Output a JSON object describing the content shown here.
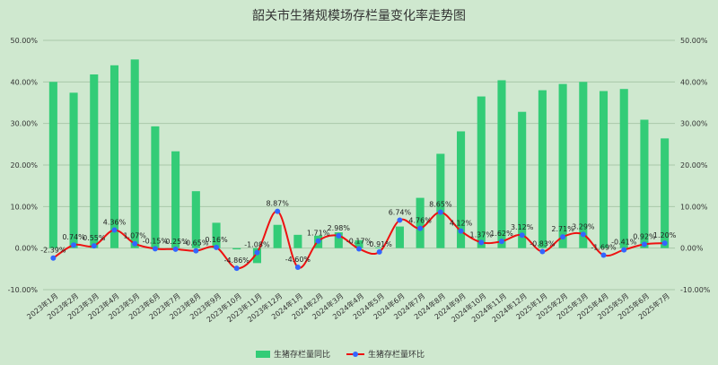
{
  "chart_data": {
    "type": "bar",
    "title": "韶关市生猪规模场存栏量变化率走势图",
    "categories": [
      "2023年1月",
      "2023年2月",
      "2023年3月",
      "2023年4月",
      "2023年5月",
      "2023年6月",
      "2023年7月",
      "2023年8月",
      "2023年9月",
      "2023年10月",
      "2023年11月",
      "2023年12月",
      "2024年1月",
      "2024年2月",
      "2024年3月",
      "2024年4月",
      "2024年5月",
      "2024年6月",
      "2024年7月",
      "2024年8月",
      "2024年9月",
      "2024年10月",
      "2024年11月",
      "2024年12月",
      "2025年1月",
      "2025年2月",
      "2025年3月",
      "2025年4月",
      "2025年5月",
      "2025年6月",
      "2025年7月"
    ],
    "series": [
      {
        "name": "生猪存栏量同比",
        "type": "bar",
        "color": "#33cc77",
        "values": [
          40.0,
          37.4,
          41.8,
          44.0,
          45.4,
          29.3,
          23.3,
          13.7,
          6.1,
          -0.3,
          -3.6,
          5.6,
          3.2,
          3.0,
          3.8,
          1.9,
          0.2,
          5.2,
          12.1,
          22.7,
          28.1,
          36.5,
          40.4,
          32.8,
          38.0,
          39.5,
          40.0,
          37.8,
          38.3,
          30.9,
          26.4
        ]
      },
      {
        "name": "生猪存栏量环比",
        "type": "line",
        "color": "#ee1111",
        "marker_color": "#3366ff",
        "values": [
          -2.39,
          0.74,
          0.55,
          4.36,
          1.07,
          -0.15,
          -0.25,
          -0.65,
          0.16,
          -4.86,
          -1.08,
          8.87,
          -4.6,
          1.71,
          2.98,
          -0.17,
          -0.91,
          6.74,
          4.76,
          8.65,
          4.12,
          1.37,
          1.62,
          3.12,
          -0.83,
          2.71,
          3.29,
          -1.69,
          -0.41,
          0.92,
          1.2
        ],
        "labels": [
          "-2.39%",
          "0.74%",
          "0.55%",
          "4.36%",
          "1.07%",
          "-0.15%",
          "-0.25%",
          "-0.65%",
          "0.16%",
          "-4.86%",
          "-1.08%",
          "8.87%",
          "-4.60%",
          "1.71%",
          "2.98%",
          "-0.17%",
          "-0.91%",
          "6.74%",
          "4.76%",
          "8.65%",
          "4.12%",
          "1.37%",
          "1.62%",
          "3.12%",
          "-0.83%",
          "2.71%",
          "3.29%",
          "-1.69%",
          "-0.41%",
          "0.92%",
          "1.20%"
        ]
      }
    ],
    "ylim": [
      -10,
      50
    ],
    "yticks": [
      "50.00%",
      "40.00%",
      "30.00%",
      "20.00%",
      "10.00%",
      "0.00%",
      "-10.00%"
    ],
    "ytick_values": [
      50,
      40,
      30,
      20,
      10,
      0,
      -10
    ],
    "grid": true,
    "legend_position": "bottom-center"
  }
}
